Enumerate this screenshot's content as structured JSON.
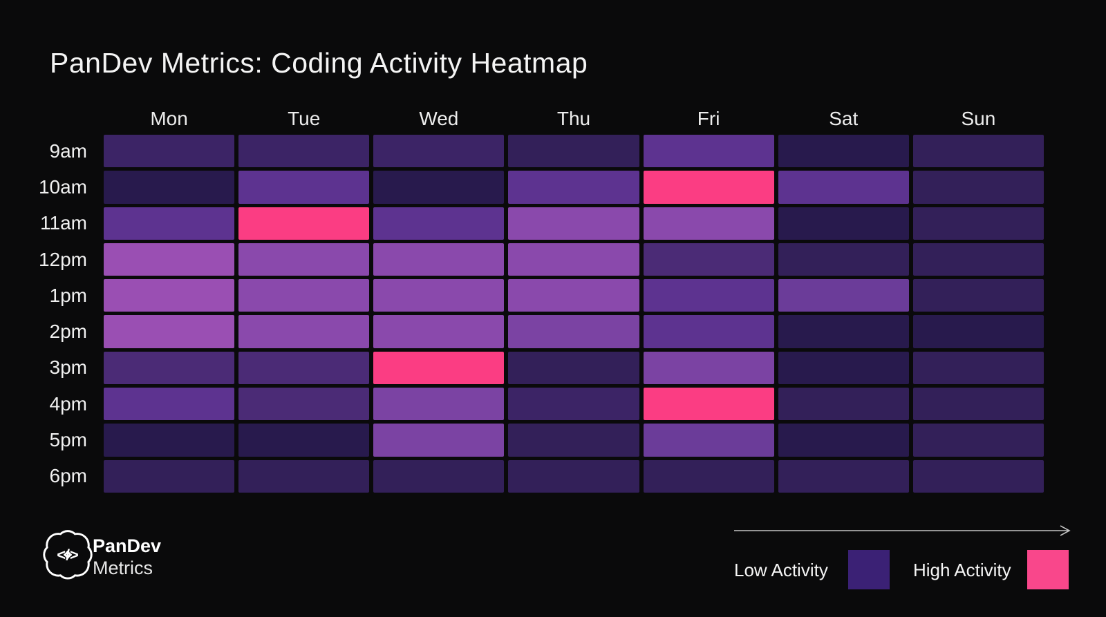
{
  "title": "PanDev Metrics: Coding Activity Heatmap",
  "brand": {
    "logo_icon": "brain-code-icon",
    "code_glyph": "</>",
    "name_top": "PanDev",
    "name_bottom": "Metrics"
  },
  "legend": {
    "arrow_icon": "arrow-right-icon",
    "arrow_color": "#c4c4c4",
    "low_label": "Low Activity",
    "low_color": "#3b2175",
    "high_label": "High Activity",
    "high_color": "#f9478b"
  },
  "chart_data": {
    "type": "heatmap",
    "title": "PanDev Metrics: Coding Activity Heatmap",
    "columns": [
      "Mon",
      "Tue",
      "Wed",
      "Thu",
      "Fri",
      "Sat",
      "Sun"
    ],
    "rows": [
      "9am",
      "10am",
      "11am",
      "12pm",
      "1pm",
      "2pm",
      "3pm",
      "4pm",
      "5pm",
      "6pm"
    ],
    "values": [
      [
        3,
        3,
        3,
        2,
        5,
        1,
        2
      ],
      [
        1,
        5,
        1,
        5,
        10,
        5,
        2
      ],
      [
        5,
        10,
        5,
        8,
        8,
        1,
        2
      ],
      [
        9,
        8,
        8,
        8,
        4,
        2,
        2
      ],
      [
        9,
        8,
        8,
        8,
        5,
        6,
        2
      ],
      [
        9,
        8,
        8,
        7,
        5,
        1,
        1
      ],
      [
        4,
        4,
        10,
        2,
        7,
        1,
        2
      ],
      [
        5,
        4,
        7,
        3,
        10,
        2,
        2
      ],
      [
        1,
        1,
        7,
        2,
        6,
        1,
        2
      ],
      [
        2,
        2,
        2,
        2,
        2,
        2,
        2
      ]
    ],
    "value_scale": "1 = lowest activity (dark purple), 9 = highest purple, 10 = high activity (pink)",
    "palette": [
      "#281a4d",
      "#332059",
      "#3c2466",
      "#4b2b76",
      "#5d3390",
      "#6b3c99",
      "#7b43a3",
      "#8a49ac",
      "#9a4fb3",
      "#fb3d83"
    ],
    "background": "#0a0a0b",
    "legend_position": "bottom-right",
    "grid": "off"
  }
}
